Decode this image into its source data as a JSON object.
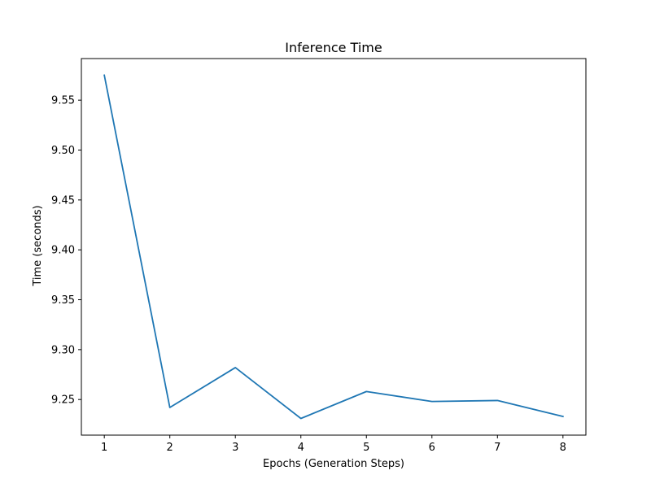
{
  "chart_data": {
    "type": "line",
    "title": "Inference Time",
    "xlabel": "Epochs (Generation Steps)",
    "ylabel": "Time (seconds)",
    "x": [
      1,
      2,
      3,
      4,
      5,
      6,
      7,
      8
    ],
    "series": [
      {
        "values": [
          9.575,
          9.242,
          9.282,
          9.231,
          9.258,
          9.248,
          9.249,
          9.233
        ],
        "color": "#1f77b4"
      }
    ],
    "xticks": [
      "1",
      "2",
      "3",
      "4",
      "5",
      "6",
      "7",
      "8"
    ],
    "yticks": [
      "9.25",
      "9.30",
      "9.35",
      "9.40",
      "9.45",
      "9.50",
      "9.55"
    ],
    "xlim": [
      0.65,
      8.35
    ],
    "ylim": [
      9.2143,
      9.5917
    ],
    "grid": false,
    "legend": "none"
  }
}
